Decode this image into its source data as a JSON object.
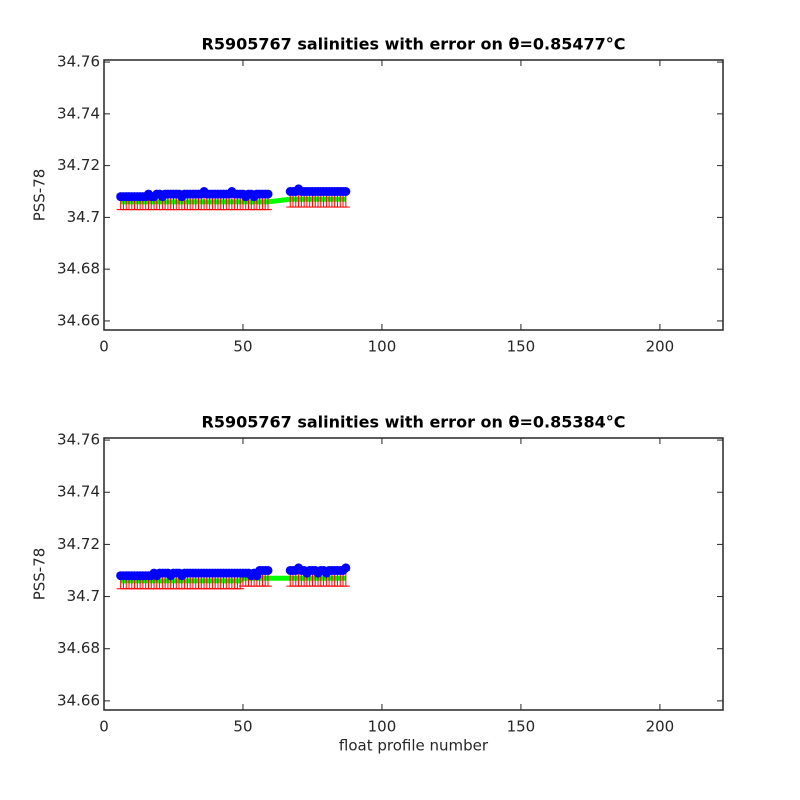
{
  "chart_data": [
    {
      "type": "errorbar",
      "title": "R5905767 salinities with error on θ=0.85477°C",
      "y_label": "PSS-78",
      "x": [
        6,
        7,
        8,
        9,
        10,
        11,
        12,
        13,
        14,
        15,
        16,
        17,
        18,
        19,
        20,
        21,
        22,
        23,
        24,
        25,
        26,
        27,
        28,
        29,
        30,
        31,
        32,
        33,
        34,
        35,
        36,
        37,
        38,
        39,
        40,
        41,
        42,
        43,
        44,
        45,
        46,
        47,
        48,
        49,
        50,
        51,
        52,
        53,
        54,
        55,
        56,
        57,
        58,
        59,
        67,
        68,
        69,
        70,
        71,
        72,
        73,
        74,
        75,
        76,
        77,
        78,
        79,
        80,
        81,
        82,
        83,
        84,
        85,
        86,
        87
      ],
      "series": [
        {
          "color": "#0000ff",
          "values": [
            34.708,
            34.708,
            34.708,
            34.708,
            34.708,
            34.708,
            34.708,
            34.708,
            34.708,
            34.708,
            34.709,
            34.708,
            34.708,
            34.709,
            34.709,
            34.708,
            34.709,
            34.709,
            34.709,
            34.709,
            34.709,
            34.709,
            34.708,
            34.709,
            34.709,
            34.709,
            34.709,
            34.709,
            34.709,
            34.709,
            34.71,
            34.709,
            34.709,
            34.709,
            34.709,
            34.709,
            34.709,
            34.709,
            34.709,
            34.709,
            34.71,
            34.709,
            34.709,
            34.709,
            34.709,
            34.708,
            34.709,
            34.709,
            34.708,
            34.709,
            34.709,
            34.709,
            34.709,
            34.709,
            34.71,
            34.71,
            34.71,
            34.711,
            34.71,
            34.71,
            34.71,
            34.71,
            34.71,
            34.71,
            34.71,
            34.71,
            34.71,
            34.71,
            34.71,
            34.71,
            34.71,
            34.71,
            34.71,
            34.71,
            34.71
          ]
        },
        {
          "color": "#00ff00",
          "error_color": "#ff0000",
          "values": [
            34.706,
            34.706,
            34.706,
            34.706,
            34.706,
            34.706,
            34.706,
            34.706,
            34.706,
            34.706,
            34.706,
            34.706,
            34.706,
            34.706,
            34.706,
            34.706,
            34.706,
            34.706,
            34.706,
            34.706,
            34.706,
            34.706,
            34.706,
            34.706,
            34.706,
            34.706,
            34.706,
            34.706,
            34.706,
            34.706,
            34.706,
            34.706,
            34.706,
            34.706,
            34.706,
            34.706,
            34.706,
            34.706,
            34.706,
            34.706,
            34.706,
            34.706,
            34.706,
            34.706,
            34.706,
            34.706,
            34.706,
            34.706,
            34.706,
            34.706,
            34.706,
            34.706,
            34.706,
            34.706,
            34.707,
            34.707,
            34.707,
            34.707,
            34.707,
            34.707,
            34.707,
            34.707,
            34.707,
            34.707,
            34.707,
            34.707,
            34.707,
            34.707,
            34.707,
            34.707,
            34.707,
            34.707,
            34.707,
            34.707,
            34.707
          ],
          "errors": [
            0.003,
            0.003,
            0.003,
            0.003,
            0.003,
            0.003,
            0.003,
            0.003,
            0.003,
            0.003,
            0.003,
            0.003,
            0.003,
            0.003,
            0.003,
            0.003,
            0.003,
            0.003,
            0.003,
            0.003,
            0.003,
            0.003,
            0.003,
            0.003,
            0.003,
            0.003,
            0.003,
            0.003,
            0.003,
            0.003,
            0.003,
            0.003,
            0.003,
            0.003,
            0.003,
            0.003,
            0.003,
            0.003,
            0.003,
            0.003,
            0.003,
            0.003,
            0.003,
            0.003,
            0.003,
            0.003,
            0.003,
            0.003,
            0.003,
            0.003,
            0.003,
            0.003,
            0.003,
            0.003,
            0.003,
            0.003,
            0.003,
            0.003,
            0.003,
            0.003,
            0.003,
            0.003,
            0.003,
            0.003,
            0.003,
            0.003,
            0.003,
            0.003,
            0.003,
            0.003,
            0.003,
            0.003,
            0.003,
            0.003,
            0.003
          ]
        }
      ],
      "xlim": [
        0,
        222.7
      ],
      "xticks": [
        0,
        50,
        100,
        150,
        200
      ],
      "ylim": [
        34.6565,
        34.7608
      ],
      "yticks": [
        34.66,
        34.68,
        34.7,
        34.72,
        34.74,
        34.76
      ]
    },
    {
      "type": "errorbar",
      "title": "R5905767 salinities with error on θ=0.85384°C",
      "y_label": "PSS-78",
      "x_label": "float profile number",
      "x": [
        6,
        7,
        8,
        9,
        10,
        11,
        12,
        13,
        14,
        15,
        16,
        17,
        18,
        19,
        20,
        21,
        22,
        23,
        24,
        25,
        26,
        27,
        28,
        29,
        30,
        31,
        32,
        33,
        34,
        35,
        36,
        37,
        38,
        39,
        40,
        41,
        42,
        43,
        44,
        45,
        46,
        47,
        48,
        49,
        50,
        51,
        52,
        53,
        54,
        55,
        56,
        57,
        58,
        59,
        67,
        68,
        69,
        70,
        71,
        72,
        73,
        74,
        75,
        76,
        77,
        78,
        79,
        80,
        81,
        82,
        83,
        84,
        85,
        86,
        87
      ],
      "series": [
        {
          "color": "#0000ff",
          "values": [
            34.708,
            34.708,
            34.708,
            34.708,
            34.708,
            34.708,
            34.708,
            34.708,
            34.708,
            34.708,
            34.708,
            34.708,
            34.709,
            34.708,
            34.709,
            34.709,
            34.709,
            34.709,
            34.708,
            34.709,
            34.709,
            34.709,
            34.708,
            34.709,
            34.709,
            34.709,
            34.709,
            34.709,
            34.709,
            34.709,
            34.709,
            34.709,
            34.709,
            34.709,
            34.709,
            34.709,
            34.709,
            34.709,
            34.709,
            34.709,
            34.709,
            34.709,
            34.709,
            34.709,
            34.709,
            34.709,
            34.709,
            34.708,
            34.709,
            34.708,
            34.71,
            34.71,
            34.71,
            34.71,
            34.71,
            34.71,
            34.71,
            34.711,
            34.71,
            34.71,
            34.709,
            34.71,
            34.71,
            34.71,
            34.709,
            34.71,
            34.71,
            34.709,
            34.71,
            34.71,
            34.71,
            34.71,
            34.71,
            34.71,
            34.711
          ]
        },
        {
          "color": "#00ff00",
          "error_color": "#ff0000",
          "values": [
            34.706,
            34.706,
            34.706,
            34.706,
            34.706,
            34.706,
            34.706,
            34.706,
            34.706,
            34.706,
            34.706,
            34.706,
            34.706,
            34.706,
            34.706,
            34.706,
            34.706,
            34.706,
            34.706,
            34.706,
            34.706,
            34.706,
            34.706,
            34.706,
            34.706,
            34.706,
            34.706,
            34.706,
            34.706,
            34.706,
            34.706,
            34.706,
            34.706,
            34.706,
            34.706,
            34.706,
            34.706,
            34.706,
            34.706,
            34.706,
            34.706,
            34.706,
            34.706,
            34.706,
            34.707,
            34.707,
            34.707,
            34.707,
            34.707,
            34.707,
            34.707,
            34.707,
            34.707,
            34.707,
            34.707,
            34.707,
            34.707,
            34.707,
            34.707,
            34.707,
            34.707,
            34.707,
            34.707,
            34.707,
            34.707,
            34.707,
            34.707,
            34.707,
            34.707,
            34.707,
            34.707,
            34.707,
            34.707,
            34.707,
            34.707
          ],
          "errors": [
            0.003,
            0.003,
            0.003,
            0.003,
            0.003,
            0.003,
            0.003,
            0.003,
            0.003,
            0.003,
            0.003,
            0.003,
            0.003,
            0.003,
            0.003,
            0.003,
            0.003,
            0.003,
            0.003,
            0.003,
            0.003,
            0.003,
            0.003,
            0.003,
            0.003,
            0.003,
            0.003,
            0.003,
            0.003,
            0.003,
            0.003,
            0.003,
            0.003,
            0.003,
            0.003,
            0.003,
            0.003,
            0.003,
            0.003,
            0.003,
            0.003,
            0.003,
            0.003,
            0.003,
            0.003,
            0.003,
            0.003,
            0.003,
            0.003,
            0.003,
            0.003,
            0.003,
            0.003,
            0.003,
            0.003,
            0.003,
            0.003,
            0.003,
            0.003,
            0.003,
            0.003,
            0.003,
            0.003,
            0.003,
            0.003,
            0.003,
            0.003,
            0.003,
            0.003,
            0.003,
            0.003,
            0.003,
            0.003,
            0.003,
            0.003
          ]
        }
      ],
      "xlim": [
        0,
        222.7
      ],
      "xticks": [
        0,
        50,
        100,
        150,
        200
      ],
      "ylim": [
        34.6565,
        34.7608
      ],
      "yticks": [
        34.66,
        34.68,
        34.7,
        34.72,
        34.74,
        34.76
      ]
    }
  ]
}
